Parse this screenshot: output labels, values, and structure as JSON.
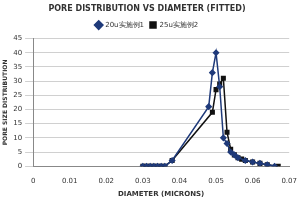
{
  "chart_data": {
    "type": "line",
    "title": "PORE DISTRIBUTION VS DIAMETER (FITTED)",
    "x_label": "DIAMETER (MICRONS)",
    "y_label": "PORE SIZE DISTRIBUTION",
    "series": [
      {
        "name": "20u实施例1",
        "color": "#1f3a7a",
        "marker": "diamond",
        "x": [
          0.03,
          0.031,
          0.032,
          0.033,
          0.034,
          0.035,
          0.036,
          0.038,
          0.048,
          0.049,
          0.05,
          0.051,
          0.052,
          0.053,
          0.054,
          0.055,
          0.056,
          0.058,
          0.06,
          0.062,
          0.064,
          0.066
        ],
        "values": [
          0,
          0,
          0,
          0,
          0,
          0,
          0,
          2,
          21,
          33,
          40,
          28,
          10,
          8,
          5,
          4,
          3,
          2,
          1.5,
          1,
          0.5,
          0
        ]
      },
      {
        "name": "25u实施例2",
        "color": "#111111",
        "marker": "square",
        "x": [
          0.03,
          0.031,
          0.032,
          0.033,
          0.034,
          0.035,
          0.036,
          0.038,
          0.049,
          0.05,
          0.051,
          0.052,
          0.053,
          0.054,
          0.055,
          0.056,
          0.057,
          0.058,
          0.06,
          0.062,
          0.064,
          0.067
        ],
        "values": [
          0,
          0,
          0,
          0,
          0,
          0,
          0,
          2,
          19,
          27,
          29,
          31,
          12,
          6,
          4,
          3,
          2.5,
          2,
          1.5,
          1,
          0.5,
          0
        ]
      }
    ],
    "xlim": [
      0,
      0.07
    ],
    "xticks": [
      0,
      0.01,
      0.02,
      0.03,
      0.04,
      0.05,
      0.06,
      0.07
    ],
    "ylim": [
      0,
      45
    ],
    "yticks": [
      0,
      5,
      10,
      15,
      20,
      25,
      30,
      35,
      40,
      45
    ],
    "grid": "y",
    "legend": "top"
  }
}
